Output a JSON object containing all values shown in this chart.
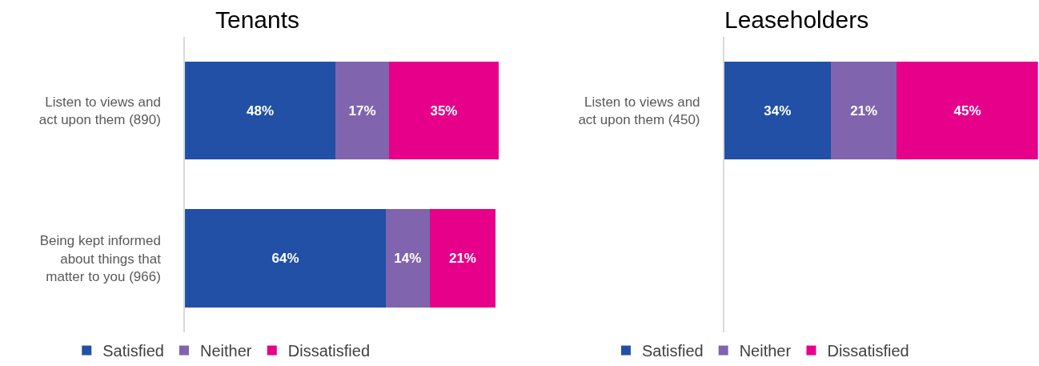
{
  "chart_data": [
    {
      "type": "bar",
      "orientation": "horizontal",
      "stacked": true,
      "title": "Tenants",
      "categories": [
        "Listen to views and act upon them (890)",
        "Being kept informed about things that matter to you (966)"
      ],
      "series": [
        {
          "name": "Satisfied",
          "color": "#2150a6",
          "values": [
            48,
            64
          ],
          "value_labels": [
            "48%",
            "64%"
          ]
        },
        {
          "name": "Neither",
          "color": "#8064ae",
          "values": [
            17,
            14
          ],
          "value_labels": [
            "17%",
            "14%"
          ]
        },
        {
          "name": "Dissatisfied",
          "color": "#e6008a",
          "values": [
            35,
            21
          ],
          "value_labels": [
            "35%",
            "21%"
          ]
        }
      ],
      "xlim": [
        0,
        100
      ],
      "tick_labels": "y",
      "legend": "bottom"
    },
    {
      "type": "bar",
      "orientation": "horizontal",
      "stacked": true,
      "title": "Leaseholders",
      "categories": [
        "Listen to views and act upon them (450)"
      ],
      "series": [
        {
          "name": "Satisfied",
          "color": "#2150a6",
          "values": [
            34
          ],
          "value_labels": [
            "34%"
          ]
        },
        {
          "name": "Neither",
          "color": "#8064ae",
          "values": [
            21
          ],
          "value_labels": [
            "21%"
          ]
        },
        {
          "name": "Dissatisfied",
          "color": "#e6008a",
          "values": [
            45
          ],
          "value_labels": [
            "45%"
          ]
        }
      ],
      "xlim": [
        0,
        100
      ],
      "tick_labels": "y",
      "legend": "bottom"
    }
  ]
}
